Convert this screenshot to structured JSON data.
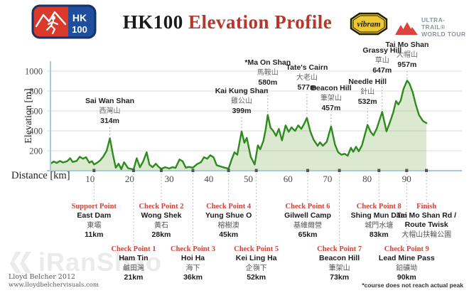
{
  "header": {
    "logo": {
      "hk": "HK",
      "num": "100"
    },
    "title_black": "HK100",
    "title_red": " Elevation Profile",
    "vibram_label": "vibram",
    "utwt_line1": "ULTRA-TRAIL®",
    "utwt_line2": "WORLD TOUR"
  },
  "colors": {
    "title_red": "#b5372c",
    "checkpoint_red": "#cf4339",
    "line_green": "#2e8b1e",
    "fill_green": "#dbe9d0",
    "axis_blue": "#a9c9e0",
    "grid_gray": "rgba(130,130,130,0.28)",
    "tick_text": "#4a4a4a",
    "logo_red": "#d93a2b",
    "logo_blue": "#1f4e9c",
    "logo_border": "#16326e",
    "vibram_yellow": "#eec832",
    "vibram_border": "#1f1f07",
    "utwt_red": "#d9453c",
    "watermark_gray": "#ebebeb"
  },
  "chart_data": {
    "type": "area",
    "title": "HK100 Elevation Profile",
    "xlabel": "Distance [km]",
    "ylabel": "Elevation [m]",
    "xlim": [
      0,
      100
    ],
    "ylim": [
      0,
      1100
    ],
    "grid": true,
    "x_ticks": [
      10,
      20,
      30,
      40,
      50,
      60,
      70,
      80,
      90
    ],
    "y_ticks": [
      200,
      400,
      600,
      800,
      1000
    ],
    "profile": [
      [
        0,
        70
      ],
      [
        0.8,
        92
      ],
      [
        1.6,
        78
      ],
      [
        2.4,
        98
      ],
      [
        3.2,
        82
      ],
      [
        4.2,
        95
      ],
      [
        5,
        125
      ],
      [
        5.6,
        88
      ],
      [
        6.6,
        98
      ],
      [
        7.4,
        140
      ],
      [
        8.2,
        120
      ],
      [
        9,
        135
      ],
      [
        9.8,
        80
      ],
      [
        10.5,
        95
      ],
      [
        11,
        62
      ],
      [
        11.8,
        80
      ],
      [
        12.6,
        105
      ],
      [
        13.4,
        145
      ],
      [
        14.2,
        200
      ],
      [
        15,
        326
      ],
      [
        15.8,
        160
      ],
      [
        16.5,
        30
      ],
      [
        17.2,
        70
      ],
      [
        17.9,
        15
      ],
      [
        18.6,
        85
      ],
      [
        19.6,
        25
      ],
      [
        21,
        12
      ],
      [
        21.8,
        125
      ],
      [
        22.6,
        35
      ],
      [
        23.4,
        90
      ],
      [
        24.3,
        185
      ],
      [
        25,
        60
      ],
      [
        25.8,
        35
      ],
      [
        26.6,
        70
      ],
      [
        27.3,
        40
      ],
      [
        28,
        18
      ],
      [
        29,
        35
      ],
      [
        30,
        22
      ],
      [
        30.8,
        35
      ],
      [
        31.6,
        28
      ],
      [
        32.6,
        112
      ],
      [
        33.4,
        95
      ],
      [
        34.2,
        30
      ],
      [
        35,
        38
      ],
      [
        36,
        30
      ],
      [
        37,
        65
      ],
      [
        38,
        85
      ],
      [
        38.8,
        135
      ],
      [
        39.6,
        120
      ],
      [
        40.4,
        155
      ],
      [
        41.2,
        135
      ],
      [
        42,
        55
      ],
      [
        43,
        42
      ],
      [
        44,
        30
      ],
      [
        45,
        20
      ],
      [
        45.8,
        115
      ],
      [
        46.5,
        185
      ],
      [
        47.2,
        160
      ],
      [
        48.3,
        395
      ],
      [
        49,
        280
      ],
      [
        49.6,
        330
      ],
      [
        50.6,
        140
      ],
      [
        51.6,
        62
      ],
      [
        52.4,
        255
      ],
      [
        53,
        215
      ],
      [
        53.8,
        300
      ],
      [
        54.4,
        420
      ],
      [
        54.9,
        560
      ],
      [
        55.6,
        430
      ],
      [
        56.2,
        405
      ],
      [
        57,
        350
      ],
      [
        57.7,
        420
      ],
      [
        58.5,
        305
      ],
      [
        59.4,
        455
      ],
      [
        60.2,
        390
      ],
      [
        60.9,
        435
      ],
      [
        61.8,
        400
      ],
      [
        62.6,
        455
      ],
      [
        63.4,
        420
      ],
      [
        64.1,
        470
      ],
      [
        64.8,
        530
      ],
      [
        65.7,
        390
      ],
      [
        66.5,
        310
      ],
      [
        67.5,
        250
      ],
      [
        68.1,
        285
      ],
      [
        68.8,
        250
      ],
      [
        69.8,
        290
      ],
      [
        70.9,
        445
      ],
      [
        71.9,
        260
      ],
      [
        72.7,
        185
      ],
      [
        73.5,
        160
      ],
      [
        74.3,
        170
      ],
      [
        75.1,
        150
      ],
      [
        75.9,
        230
      ],
      [
        76.5,
        190
      ],
      [
        77.2,
        240
      ],
      [
        77.9,
        195
      ],
      [
        78.7,
        255
      ],
      [
        80.1,
        460
      ],
      [
        80.9,
        390
      ],
      [
        81.6,
        355
      ],
      [
        82.4,
        420
      ],
      [
        83.8,
        590
      ],
      [
        84.9,
        395
      ],
      [
        85.8,
        490
      ],
      [
        86.6,
        585
      ],
      [
        87.3,
        700
      ],
      [
        87.9,
        665
      ],
      [
        88.5,
        705
      ],
      [
        89.2,
        820
      ],
      [
        90.1,
        905
      ],
      [
        90.7,
        875
      ],
      [
        91.5,
        790
      ],
      [
        92.3,
        665
      ],
      [
        93.1,
        560
      ],
      [
        94.1,
        500
      ],
      [
        95,
        478
      ]
    ],
    "peaks": [
      {
        "name": "Sai Wan Shan",
        "cn": "西灣山",
        "elev": "314m",
        "km": 15,
        "chart_elev": 326,
        "label_y": 145
      },
      {
        "name": "Kai Kung Shan",
        "cn": "雞公山",
        "elev": "399m",
        "km": 48.3,
        "chart_elev": 395,
        "label_y": 131
      },
      {
        "name": "*Ma On Shan",
        "cn": "馬鞍山",
        "elev": "580m",
        "km": 54.9,
        "chart_elev": 560,
        "label_y": 91
      },
      {
        "name": "Tate's Cairn",
        "cn": "大老山",
        "elev": "577m",
        "km": 64.8,
        "chart_elev": 530,
        "label_y": 98
      },
      {
        "name": "Beacon Hill",
        "cn": "筆架山",
        "elev": "457m",
        "km": 70.9,
        "chart_elev": 445,
        "label_y": 127
      },
      {
        "name": "Needle Hill",
        "cn": "針山",
        "elev": "532m",
        "km": 80.1,
        "chart_elev": 460,
        "label_y": 118
      },
      {
        "name": "Grassy Hill",
        "cn": "草山",
        "elev": "647m",
        "km": 83.8,
        "chart_elev": 590,
        "label_y": 74
      },
      {
        "name": "Tai Mo Shan",
        "cn": "大帽山",
        "elev": "957m",
        "km": 90.1,
        "chart_elev": 905,
        "label_y": 66
      }
    ],
    "checkpoints": [
      {
        "title": "Support Point",
        "name": "East Dam",
        "cn": "東壩",
        "dist": "11km",
        "km": 11,
        "row": 1
      },
      {
        "title": "Check Point 1",
        "name": "Ham Tin",
        "cn": "鹹田灣",
        "dist": "21km",
        "km": 21,
        "row": 2
      },
      {
        "title": "Check Point 2",
        "name": "Wong Shek",
        "cn": "黃石",
        "dist": "28km",
        "km": 28,
        "row": 1
      },
      {
        "title": "Check Point 3",
        "name": "Hoi Ha",
        "cn": "海下",
        "dist": "36km",
        "km": 36,
        "row": 2
      },
      {
        "title": "Check Point 4",
        "name": "Yung Shue O",
        "cn": "榕樹澳",
        "dist": "45km",
        "km": 45,
        "row": 1
      },
      {
        "title": "Check Point 5",
        "name": "Kei Ling Ha",
        "cn": "企嶺下",
        "dist": "52km",
        "km": 52,
        "row": 2
      },
      {
        "title": "Check Point 6",
        "name": "Gilwell Camp",
        "cn": "基維爾營",
        "dist": "65km",
        "km": 65,
        "row": 1
      },
      {
        "title": "Check Point 7",
        "name": "Beacon Hill",
        "cn": "筆架山",
        "dist": "73km",
        "km": 73,
        "row": 2
      },
      {
        "title": "Check Point 8",
        "name": "Shing Mun Dam",
        "cn": "城門水塘",
        "dist": "83km",
        "km": 83,
        "row": 1
      },
      {
        "title": "Check Point 9",
        "name": "Lead Mine Pass",
        "cn": "鉛礦坳",
        "dist": "90km",
        "km": 90,
        "row": 2
      },
      {
        "title": "Finish",
        "name": "Tai Mo Shan Rd /",
        "name2": "Route Twisk",
        "cn": "大帽山扶輪公園",
        "dist": "",
        "km": 95,
        "row": 1
      }
    ]
  },
  "footer": {
    "watermark": "iRanShao",
    "credit1": "Lloyd Belcher 2012",
    "credit2": "www.lloydbelchervisuals.com",
    "note": "*course does not reach actual peak"
  }
}
